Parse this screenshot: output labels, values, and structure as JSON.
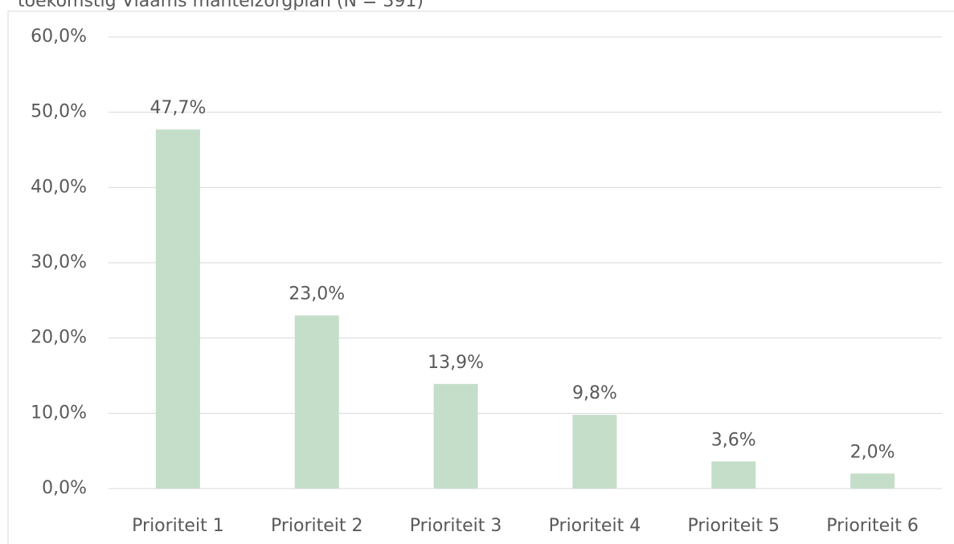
{
  "chart_data": {
    "type": "bar",
    "title": "toekomstig Vlaams mantelzorgplan (N = 391)",
    "categories": [
      "Prioriteit 1",
      "Prioriteit 2",
      "Prioriteit 3",
      "Prioriteit 4",
      "Prioriteit 5",
      "Prioriteit 6"
    ],
    "values": [
      47.7,
      23.0,
      13.9,
      9.8,
      3.6,
      2.0
    ],
    "value_labels": [
      "47,7%",
      "23,0%",
      "13,9%",
      "9,8%",
      "3,6%",
      "2,0%"
    ],
    "color": "#c5dec9",
    "ylim": [
      0,
      60
    ],
    "yticks": [
      {
        "value": 0,
        "label": "0,0%"
      },
      {
        "value": 10,
        "label": "10,0%"
      },
      {
        "value": 20,
        "label": "20,0%"
      },
      {
        "value": 30,
        "label": "30,0%"
      },
      {
        "value": 40,
        "label": "40,0%"
      },
      {
        "value": 50,
        "label": "50,0%"
      },
      {
        "value": 60,
        "label": "60,0%"
      }
    ],
    "grid": true
  }
}
